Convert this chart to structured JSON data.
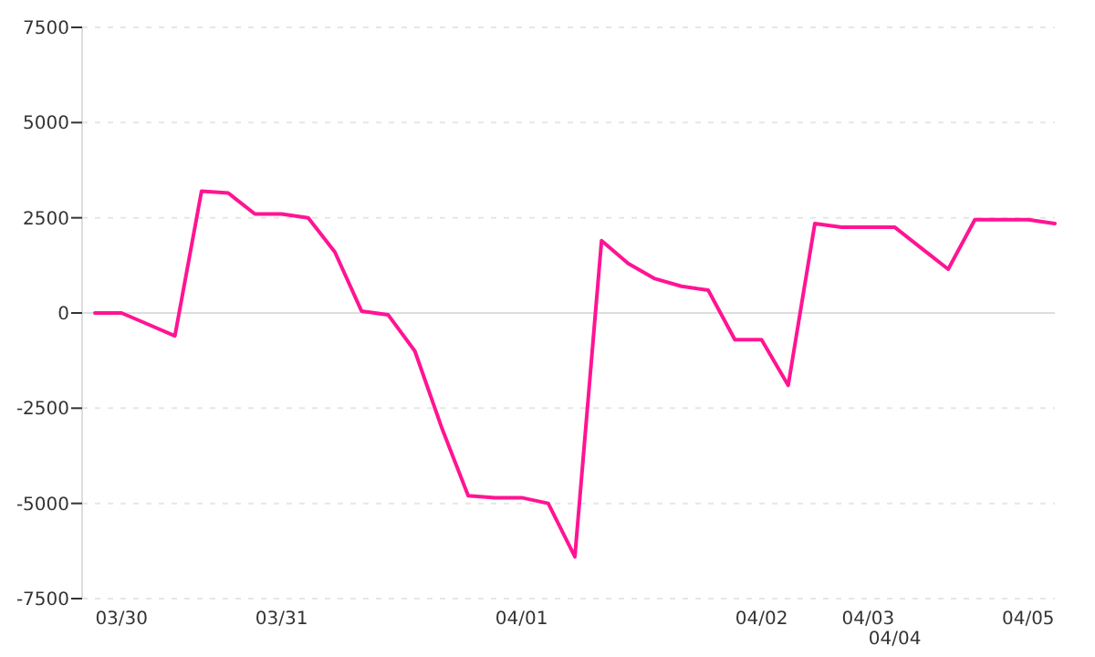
{
  "chart_data": {
    "type": "line",
    "categories": [
      null,
      "03/30",
      null,
      null,
      null,
      null,
      null,
      "03/31",
      null,
      null,
      null,
      null,
      null,
      null,
      null,
      null,
      "04/01",
      null,
      null,
      null,
      null,
      null,
      null,
      null,
      null,
      "04/02",
      null,
      null,
      null,
      "04/03",
      "04/04",
      null,
      null,
      null,
      null,
      "04/05",
      null
    ],
    "series": [
      {
        "color": "#ff1493",
        "values": [
          0,
          0,
          -300,
          -600,
          3200,
          3150,
          2600,
          2600,
          2500,
          1600,
          50,
          -50,
          -1000,
          -3000,
          -4800,
          -4850,
          -4850,
          -5000,
          -6400,
          1900,
          1300,
          900,
          700,
          600,
          -700,
          -700,
          -1900,
          2350,
          2250,
          2250,
          2250,
          1700,
          1150,
          2450,
          2450,
          2450,
          2350
        ]
      }
    ],
    "ylim": [
      -7500,
      7500
    ],
    "yticks": [
      -7500,
      -5000,
      -2500,
      0,
      2500,
      5000,
      7500
    ],
    "grid": "y",
    "marker": "none",
    "line_style": "solid",
    "ref_lines": [
      {
        "axis": "y",
        "value": 0,
        "color": "#dddddd",
        "line_style": "solid"
      }
    ]
  }
}
